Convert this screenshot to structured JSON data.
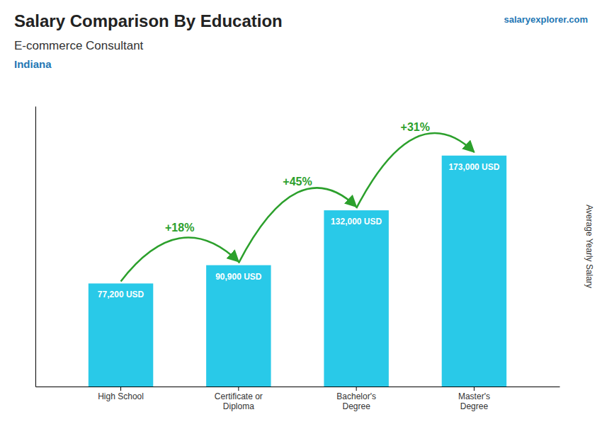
{
  "chart_data": {
    "type": "bar",
    "title": "Salary Comparison By Education",
    "subtitle": "E-commerce Consultant",
    "location": "Indiana",
    "source": "salaryexplorer.com",
    "ylabel": "Average Yearly Salary",
    "categories": [
      "High School",
      "Certificate or\nDiploma",
      "Bachelor's\nDegree",
      "Master's\nDegree"
    ],
    "values": [
      77200,
      90900,
      132000,
      173000
    ],
    "value_labels": [
      "77,200 USD",
      "90,900 USD",
      "132,000 USD",
      "173,000 USD"
    ],
    "data_labels": true,
    "annotations": [
      "+18%",
      "+45%",
      "+31%"
    ],
    "color": "#29C9E8",
    "ylim": [
      0,
      210000
    ],
    "tick_labels": "x",
    "grid": false
  }
}
